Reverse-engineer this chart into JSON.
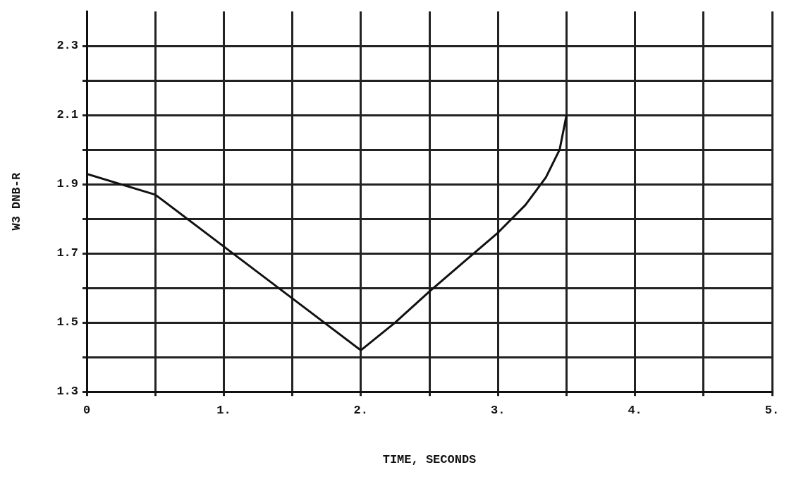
{
  "chart_data": {
    "type": "line",
    "xlabel": "TIME, SECONDS",
    "ylabel": "W3 DNB-R",
    "series": [
      {
        "color": "#111111",
        "x": [
          0,
          0.5,
          1.0,
          1.5,
          2.0,
          2.25,
          2.5,
          2.75,
          3.0,
          3.2,
          3.35,
          3.45,
          3.5
        ],
        "values": [
          1.93,
          1.87,
          1.72,
          1.57,
          1.42,
          1.5,
          1.59,
          1.675,
          1.76,
          1.84,
          1.92,
          2.0,
          2.1
        ]
      }
    ],
    "xlim": [
      0,
      5
    ],
    "ylim": [
      1.3,
      2.4
    ],
    "xticks": [
      {
        "value": 0,
        "label": "0"
      },
      {
        "value": 0.5,
        "label": null
      },
      {
        "value": 1,
        "label": "1."
      },
      {
        "value": 1.5,
        "label": null
      },
      {
        "value": 2,
        "label": "2."
      },
      {
        "value": 2.5,
        "label": null
      },
      {
        "value": 3,
        "label": "3."
      },
      {
        "value": 3.5,
        "label": null
      },
      {
        "value": 4,
        "label": "4."
      },
      {
        "value": 4.5,
        "label": null
      },
      {
        "value": 5,
        "label": "5."
      }
    ],
    "yticks": [
      1.3,
      {
        "value": 1.4,
        "label": null
      },
      1.5,
      {
        "value": 1.6,
        "label": null
      },
      1.7,
      {
        "value": 1.8,
        "label": null
      },
      1.9,
      {
        "value": 2.0,
        "label": null
      },
      2.1,
      {
        "value": 2.2,
        "label": null
      },
      2.3
    ],
    "grid": true,
    "legend": false,
    "marker": "none",
    "line_style": "solid"
  }
}
